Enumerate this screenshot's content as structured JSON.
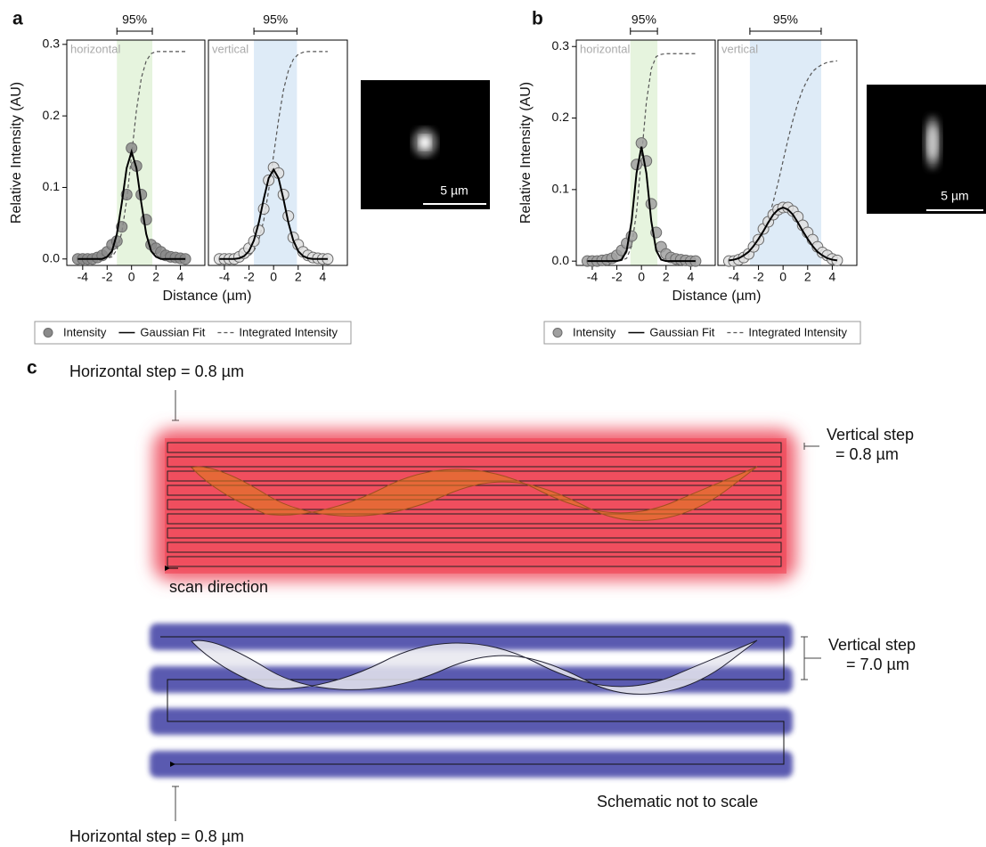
{
  "panel_labels": [
    "a",
    "b",
    "c"
  ],
  "scale_bars": [
    "5 µm",
    "5 µm"
  ],
  "schematic": {
    "horizontal_step_top": "Horizontal step = 0.8 µm",
    "vertical_step_fine": [
      "Vertical step",
      "= 0.8 µm"
    ],
    "scan_direction": "scan direction",
    "vertical_step_coarse": [
      "Vertical step",
      "= 7.0 µm"
    ],
    "note": "Schematic not to scale",
    "horizontal_step_bottom": "Horizontal step = 0.8 µm"
  },
  "chart_data": [
    {
      "type": "line",
      "title": "horizontal",
      "ylabel": "Relative Intensity (AU)",
      "xlabel": "Distance (µm)",
      "x": [
        -4.4,
        -4,
        -3.6,
        -3.2,
        -2.8,
        -2.4,
        -2,
        -1.6,
        -1.2,
        -0.8,
        -0.4,
        0,
        0.4,
        0.8,
        1.2,
        1.6,
        2,
        2.4,
        2.8,
        3.2,
        3.6,
        4,
        4.4
      ],
      "series": [
        {
          "name": "Intensity",
          "style": "markers",
          "color": "#8a8a8a",
          "values": [
            0,
            0,
            0,
            0,
            0.002,
            0.005,
            0.01,
            0.02,
            0.025,
            0.045,
            0.09,
            0.155,
            0.13,
            0.09,
            0.055,
            0.02,
            0.015,
            0.01,
            0.005,
            0.003,
            0.002,
            0.001,
            0
          ]
        },
        {
          "name": "Gaussian Fit",
          "style": "solid",
          "color": "#000000",
          "values": [
            0,
            0,
            0,
            0,
            0,
            0,
            0.003,
            0.011,
            0.035,
            0.078,
            0.127,
            0.15,
            0.127,
            0.078,
            0.035,
            0.011,
            0.003,
            0,
            0,
            0,
            0,
            0,
            0
          ]
        },
        {
          "name": "Integrated Intensity",
          "style": "dashed",
          "color": "#555555",
          "values": [
            0,
            0,
            0,
            0,
            0,
            0,
            0.001,
            0.003,
            0.013,
            0.037,
            0.082,
            0.145,
            0.208,
            0.253,
            0.277,
            0.287,
            0.29,
            0.29,
            0.29,
            0.29,
            0.29,
            0.29,
            0.29
          ]
        }
      ],
      "band": [
        -1.2,
        1.7
      ],
      "band_label": "95%",
      "band_color": "#e6f4de",
      "xlim": [
        -5.3,
        6
      ],
      "xticks": [
        -4,
        -2,
        0,
        2,
        4
      ],
      "ylim": [
        -0.009,
        0.306
      ],
      "yticks": [
        {
          "value": 0,
          "label": "0.0"
        },
        0.1,
        0.2,
        0.3
      ]
    },
    {
      "type": "line",
      "title": "vertical",
      "x": [
        -4.4,
        -4,
        -3.6,
        -3.2,
        -2.8,
        -2.4,
        -2,
        -1.6,
        -1.2,
        -0.8,
        -0.4,
        0,
        0.4,
        0.8,
        1.2,
        1.6,
        2,
        2.4,
        2.8,
        3.2,
        3.6,
        4,
        4.4
      ],
      "series": [
        {
          "style": "markers",
          "color": "#e0e0e0",
          "values": [
            0,
            0,
            0,
            0,
            0.003,
            0.008,
            0.015,
            0.025,
            0.04,
            0.07,
            0.11,
            0.128,
            0.12,
            0.09,
            0.06,
            0.03,
            0.02,
            0.01,
            0.005,
            0.002,
            0.001,
            0,
            0
          ]
        },
        {
          "style": "solid",
          "color": "#000000",
          "values": [
            0,
            0,
            0,
            0,
            0.001,
            0.004,
            0.011,
            0.026,
            0.051,
            0.084,
            0.113,
            0.125,
            0.113,
            0.084,
            0.051,
            0.026,
            0.011,
            0.004,
            0.001,
            0,
            0,
            0,
            0
          ]
        },
        {
          "style": "dashed",
          "color": "#555555",
          "values": [
            0,
            0,
            0,
            0,
            0,
            0.001,
            0.004,
            0.011,
            0.027,
            0.054,
            0.096,
            0.145,
            0.194,
            0.236,
            0.263,
            0.279,
            0.286,
            0.289,
            0.29,
            0.29,
            0.29,
            0.29,
            0.29
          ]
        }
      ],
      "band": [
        -1.6,
        1.9
      ],
      "band_label": "95%",
      "band_color": "#deebf7",
      "xlim": [
        -5.3,
        6
      ],
      "xticks": [
        -4,
        -2,
        0,
        2,
        4
      ],
      "ylim": [
        -0.009,
        0.306
      ]
    },
    {
      "type": "line",
      "title": "horizontal",
      "ylabel": "Relative Intensity (AU)",
      "xlabel": "Distance (µm)",
      "x": [
        -4.4,
        -4,
        -3.6,
        -3.2,
        -2.8,
        -2.4,
        -2,
        -1.6,
        -1.2,
        -0.8,
        -0.4,
        0,
        0.4,
        0.8,
        1.2,
        1.6,
        2,
        2.4,
        2.8,
        3.2,
        3.6,
        4,
        4.4
      ],
      "series": [
        {
          "name": "Intensity",
          "style": "markers",
          "color": "#a0a0a0",
          "values": [
            0,
            0,
            0,
            0.001,
            0.002,
            0.004,
            0.008,
            0.015,
            0.025,
            0.035,
            0.135,
            0.165,
            0.14,
            0.08,
            0.04,
            0.02,
            0.01,
            0.005,
            0.003,
            0.002,
            0.001,
            0,
            0
          ]
        },
        {
          "name": "Gaussian Fit",
          "style": "solid",
          "color": "#000000",
          "values": [
            0,
            0,
            0,
            0,
            0,
            0,
            0,
            0.002,
            0.015,
            0.056,
            0.123,
            0.16,
            0.123,
            0.056,
            0.015,
            0.002,
            0,
            0,
            0,
            0,
            0,
            0,
            0
          ]
        },
        {
          "name": "Integrated Intensity",
          "style": "dashed",
          "color": "#555555",
          "values": [
            0,
            0,
            0,
            0,
            0,
            0,
            0,
            0.001,
            0.004,
            0.021,
            0.068,
            0.145,
            0.222,
            0.269,
            0.286,
            0.289,
            0.29,
            0.29,
            0.29,
            0.29,
            0.29,
            0.29,
            0.29
          ]
        }
      ],
      "band": [
        -0.9,
        1.3
      ],
      "band_label": "95%",
      "band_color": "#e6f4de",
      "xlim": [
        -5.3,
        6
      ],
      "xticks": [
        -4,
        -2,
        0,
        2,
        4
      ],
      "ylim": [
        -0.006,
        0.309
      ],
      "yticks": [
        {
          "value": 0,
          "label": "0.0"
        },
        0.1,
        0.2,
        0.3
      ]
    },
    {
      "type": "line",
      "title": "vertical",
      "x": [
        -4.4,
        -4,
        -3.6,
        -3.2,
        -2.8,
        -2.4,
        -2,
        -1.6,
        -1.2,
        -0.8,
        -0.4,
        0,
        0.4,
        0.8,
        1.2,
        1.6,
        2,
        2.4,
        2.8,
        3.2,
        3.6,
        4,
        4.4
      ],
      "series": [
        {
          "style": "markers",
          "color": "#e0e0e0",
          "values": [
            0,
            0,
            0.002,
            0.005,
            0.01,
            0.02,
            0.03,
            0.045,
            0.055,
            0.065,
            0.072,
            0.075,
            0.075,
            0.07,
            0.062,
            0.05,
            0.04,
            0.03,
            0.02,
            0.012,
            0.008,
            0.003,
            0.001
          ]
        },
        {
          "style": "solid",
          "color": "#000000",
          "values": [
            0.001,
            0.002,
            0.004,
            0.008,
            0.013,
            0.021,
            0.031,
            0.042,
            0.054,
            0.065,
            0.072,
            0.075,
            0.072,
            0.065,
            0.054,
            0.042,
            0.031,
            0.021,
            0.013,
            0.008,
            0.004,
            0.002,
            0.001
          ]
        },
        {
          "style": "dashed",
          "color": "#555555",
          "values": [
            0,
            0.001,
            0.002,
            0.005,
            0.009,
            0.015,
            0.026,
            0.04,
            0.059,
            0.083,
            0.11,
            0.14,
            0.17,
            0.197,
            0.221,
            0.24,
            0.254,
            0.265,
            0.271,
            0.275,
            0.278,
            0.279,
            0.28
          ]
        }
      ],
      "band": [
        -2.7,
        3.1
      ],
      "band_label": "95%",
      "band_color": "#deebf7",
      "xlim": [
        -5.3,
        6
      ],
      "xticks": [
        -4,
        -2,
        0,
        2,
        4
      ],
      "ylim": [
        -0.006,
        0.309
      ]
    }
  ]
}
